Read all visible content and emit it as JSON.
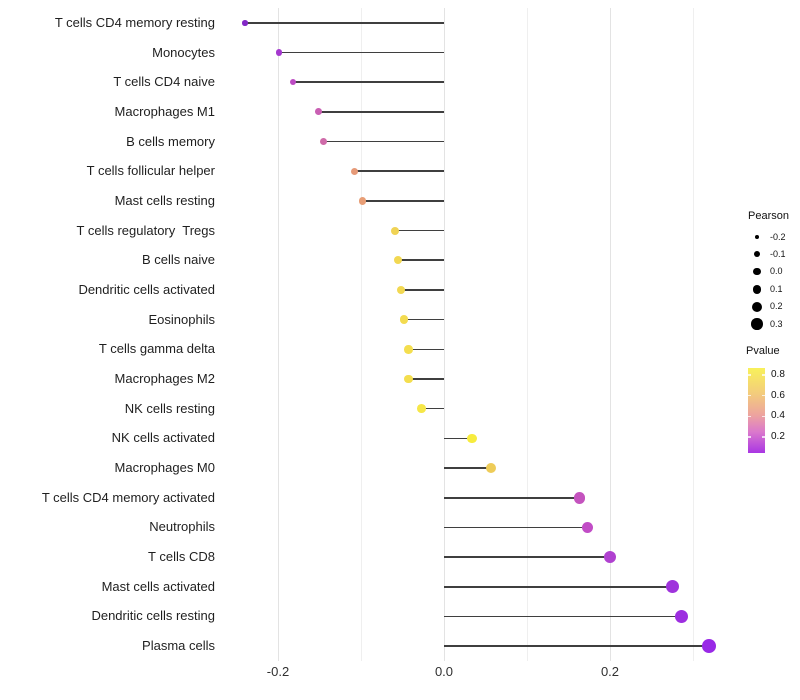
{
  "chart_data": {
    "type": "scatter",
    "style": "lollipop",
    "orientation": "horizontal",
    "title": "",
    "xlabel": "",
    "ylabel": "",
    "xlim": [
      -0.27,
      0.35
    ],
    "x_ticks_major": [
      -0.2,
      0.0,
      0.2
    ],
    "x_ticks_minor": [
      -0.1,
      0.1,
      0.3
    ],
    "x_tick_labels": [
      "-0.2",
      "0.0",
      "0.2"
    ],
    "grid": "vertical-only",
    "legend_position": "right",
    "points": [
      {
        "label": "T cells CD4 memory resting",
        "pearson": -0.24,
        "pvalue": 0.05,
        "color": "#8227C6"
      },
      {
        "label": "Monocytes",
        "pearson": -0.199,
        "pvalue": 0.1,
        "color": "#A438CE"
      },
      {
        "label": "T cells CD4 naive",
        "pearson": -0.182,
        "pvalue": 0.15,
        "color": "#BC4BC3"
      },
      {
        "label": "Macrophages M1",
        "pearson": -0.151,
        "pvalue": 0.22,
        "color": "#C95FB3"
      },
      {
        "label": "B cells memory",
        "pearson": -0.145,
        "pvalue": 0.25,
        "color": "#CF6BA9"
      },
      {
        "label": "T cells follicular helper",
        "pearson": -0.108,
        "pvalue": 0.5,
        "color": "#E69A78"
      },
      {
        "label": "Mast cells resting",
        "pearson": -0.098,
        "pvalue": 0.52,
        "color": "#E89E76"
      },
      {
        "label": "T cells regulatory  Tregs",
        "pearson": -0.059,
        "pvalue": 0.75,
        "color": "#F0D355"
      },
      {
        "label": "B cells naive",
        "pearson": -0.055,
        "pvalue": 0.77,
        "color": "#F2D852"
      },
      {
        "label": "Dendritic cells activated",
        "pearson": -0.052,
        "pvalue": 0.78,
        "color": "#F2D852"
      },
      {
        "label": "Eosinophils",
        "pearson": -0.048,
        "pvalue": 0.79,
        "color": "#F3DB50"
      },
      {
        "label": "T cells gamma delta",
        "pearson": -0.043,
        "pvalue": 0.8,
        "color": "#F4DE4E"
      },
      {
        "label": "Macrophages M2",
        "pearson": -0.043,
        "pvalue": 0.8,
        "color": "#F4DE4E"
      },
      {
        "label": "NK cells resting",
        "pearson": -0.027,
        "pvalue": 0.84,
        "color": "#F6E748"
      },
      {
        "label": "NK cells activated",
        "pearson": 0.034,
        "pvalue": 0.87,
        "color": "#F7EC3E"
      },
      {
        "label": "Macrophages M0",
        "pearson": 0.057,
        "pvalue": 0.68,
        "color": "#EECC58"
      },
      {
        "label": "T cells CD4 memory activated",
        "pearson": 0.163,
        "pvalue": 0.2,
        "color": "#C453BE"
      },
      {
        "label": "Neutrophils",
        "pearson": 0.173,
        "pvalue": 0.18,
        "color": "#C14CC6"
      },
      {
        "label": "T cells CD8",
        "pearson": 0.2,
        "pvalue": 0.14,
        "color": "#B041D0"
      },
      {
        "label": "Mast cells activated",
        "pearson": 0.275,
        "pvalue": 0.09,
        "color": "#9F33DC"
      },
      {
        "label": "Dendritic cells resting",
        "pearson": 0.286,
        "pvalue": 0.08,
        "color": "#9D2EE0"
      },
      {
        "label": "Plasma cells",
        "pearson": 0.319,
        "pvalue": 0.06,
        "color": "#9929E6"
      }
    ],
    "legends": {
      "size": {
        "title": "Pearson",
        "entries": [
          "-0.2",
          "-0.1",
          "0.0",
          "0.1",
          "0.2",
          "0.3"
        ],
        "values": [
          -0.2,
          -0.1,
          0.0,
          0.1,
          0.2,
          0.3
        ],
        "dot_color": "#000000"
      },
      "color": {
        "title": "Pvalue",
        "tick_labels": [
          "0.8",
          "0.6",
          "0.4",
          "0.2"
        ],
        "tick_values": [
          0.8,
          0.6,
          0.4,
          0.2
        ],
        "range": [
          0.045,
          0.868
        ],
        "gradient_colors": [
          "#F8F15A",
          "#F3CC7C",
          "#EDA49E",
          "#DB79CC",
          "#A936E3"
        ],
        "gradient_positions": [
          0,
          30,
          55,
          75,
          100
        ]
      }
    },
    "colors": {
      "stick": "#3F3F3F",
      "grid_major": "#E3E3E3",
      "grid_minor": "#EFEFEF",
      "axis_text": "#303030",
      "background": "#FFFFFF"
    }
  }
}
